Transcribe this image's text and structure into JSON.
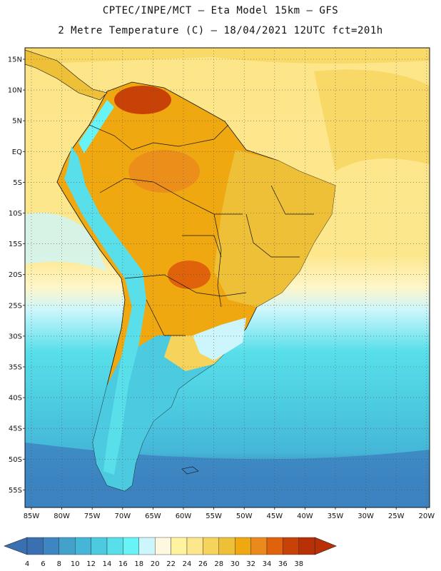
{
  "header": {
    "line1": "CPTEC/INPE/MCT –  Eta Model 15km – GFS",
    "line2": "2 Metre Temperature (C) – 18/04/2021 12UTC fct=201h"
  },
  "map": {
    "lat_labels": [
      "15N",
      "10N",
      "5N",
      "EQ",
      "5S",
      "10S",
      "15S",
      "20S",
      "25S",
      "30S",
      "35S",
      "40S",
      "45S",
      "50S",
      "55S"
    ],
    "lon_labels": [
      "85W",
      "80W",
      "75W",
      "70W",
      "65W",
      "60W",
      "55W",
      "50W",
      "45W",
      "40W",
      "35W",
      "30W",
      "25W",
      "20W"
    ]
  },
  "colorbar": {
    "labels": [
      "4",
      "6",
      "8",
      "10",
      "12",
      "14",
      "16",
      "18",
      "20",
      "22",
      "24",
      "26",
      "28",
      "30",
      "32",
      "34",
      "36",
      "38"
    ],
    "colors": [
      "#3a70b2",
      "#3d86c2",
      "#42a2cc",
      "#45b6d8",
      "#4ccbe0",
      "#58dfea",
      "#68f4f6",
      "#cdf6fc",
      "#fff8e0",
      "#fff3a0",
      "#fde78c",
      "#f6d35a",
      "#eec038",
      "#f0a810",
      "#ea8a1c",
      "#e0620a",
      "#c84208",
      "#b83006"
    ],
    "below_color": "#3a70b2",
    "above_color": "#b83006"
  }
}
